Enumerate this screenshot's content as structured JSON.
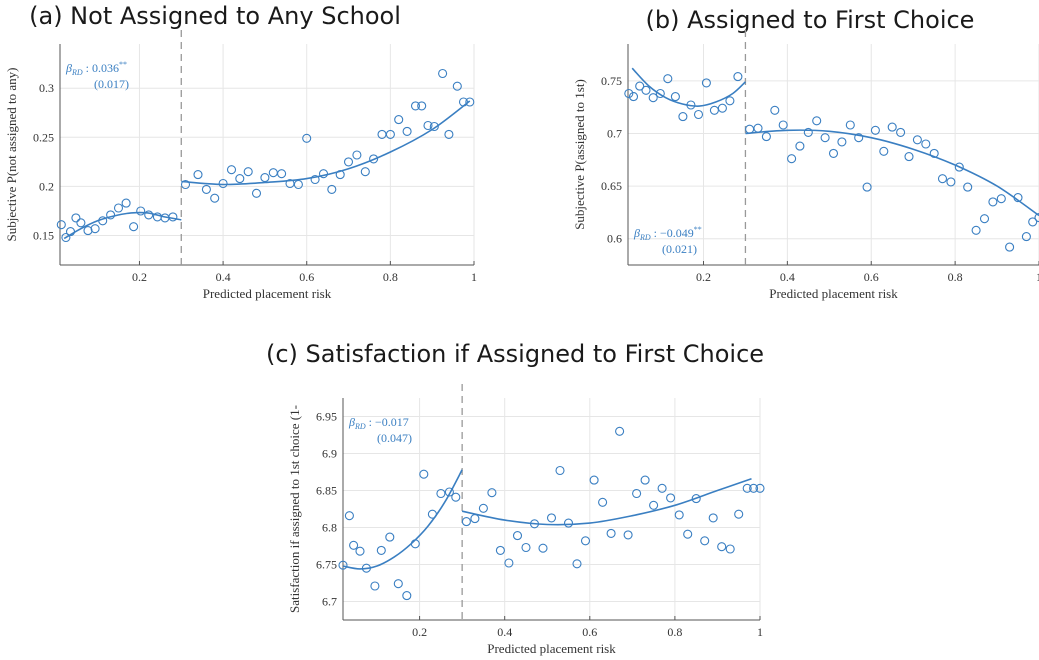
{
  "colors": {
    "series": "#3a7fc2",
    "grid": "#e6e6e6",
    "axis": "#555555",
    "cutoff": "#999999"
  },
  "chart_data": [
    {
      "type": "scatter",
      "title": "(a) Not Assigned to Any School",
      "xlabel": "Predicted placement risk",
      "ylabel": "Subjective P(not assigned to any)",
      "xlim": [
        0.01,
        1.0
      ],
      "ylim": [
        0.12,
        0.345
      ],
      "xticks": [
        0.2,
        0.4,
        0.6,
        0.8,
        1
      ],
      "xtick_labels": [
        "0.2",
        "0.4",
        "0.6",
        "0.8",
        "1"
      ],
      "yticks": [
        0.15,
        0.2,
        0.25,
        0.3
      ],
      "ytick_labels": [
        "0.15",
        "0.2",
        "0.25",
        "0.3"
      ],
      "cutoff": 0.3,
      "grid": true,
      "annotation": {
        "line1": "β",
        "sub": "RD",
        "value": " : 0.036",
        "stars": "**",
        "se": "(0.017)",
        "pos": "top-left"
      },
      "points_x": [
        0.013,
        0.024,
        0.035,
        0.048,
        0.06,
        0.077,
        0.094,
        0.112,
        0.131,
        0.15,
        0.168,
        0.186,
        0.203,
        0.222,
        0.243,
        0.261,
        0.28,
        0.31,
        0.34,
        0.36,
        0.38,
        0.4,
        0.42,
        0.44,
        0.46,
        0.48,
        0.5,
        0.52,
        0.54,
        0.56,
        0.58,
        0.6,
        0.62,
        0.64,
        0.66,
        0.68,
        0.7,
        0.72,
        0.74,
        0.76,
        0.78,
        0.8,
        0.82,
        0.84,
        0.86,
        0.875,
        0.89,
        0.905,
        0.925,
        0.94,
        0.96,
        0.975,
        0.99
      ],
      "points_y": [
        0.161,
        0.148,
        0.154,
        0.168,
        0.163,
        0.155,
        0.157,
        0.165,
        0.171,
        0.178,
        0.183,
        0.159,
        0.175,
        0.171,
        0.169,
        0.168,
        0.169,
        0.202,
        0.212,
        0.197,
        0.188,
        0.203,
        0.217,
        0.208,
        0.215,
        0.193,
        0.209,
        0.214,
        0.213,
        0.203,
        0.202,
        0.249,
        0.207,
        0.213,
        0.197,
        0.212,
        0.225,
        0.232,
        0.215,
        0.228,
        0.253,
        0.253,
        0.268,
        0.256,
        0.282,
        0.282,
        0.262,
        0.261,
        0.315,
        0.253,
        0.302,
        0.286,
        0.286
      ],
      "fit_left": {
        "x": [
          0.02,
          0.06,
          0.1,
          0.14,
          0.18,
          0.22,
          0.26,
          0.3
        ],
        "y": [
          0.147,
          0.157,
          0.165,
          0.17,
          0.173,
          0.173,
          0.169,
          0.166
        ]
      },
      "fit_right": {
        "x": [
          0.3,
          0.4,
          0.5,
          0.6,
          0.7,
          0.8,
          0.9,
          0.99
        ],
        "y": [
          0.205,
          0.202,
          0.204,
          0.208,
          0.218,
          0.235,
          0.258,
          0.287
        ]
      }
    },
    {
      "type": "scatter",
      "title": "(b) Assigned to First Choice",
      "xlabel": "Predicted placement risk",
      "ylabel": "Subjective P(assigned to 1st)",
      "xlim": [
        0.02,
        1.0
      ],
      "ylim": [
        0.575,
        0.785
      ],
      "xticks": [
        0.2,
        0.4,
        0.6,
        0.8,
        1
      ],
      "xtick_labels": [
        "0.2",
        "0.4",
        "0.6",
        "0.8",
        "1"
      ],
      "yticks": [
        0.6,
        0.65,
        0.7,
        0.75
      ],
      "ytick_labels": [
        "0.6",
        "0.65",
        "0.7",
        "0.75"
      ],
      "cutoff": 0.3,
      "grid": true,
      "annotation": {
        "line1": "β",
        "sub": "RD",
        "value": " : −0.049",
        "stars": "**",
        "se": "(0.021)",
        "pos": "bottom-left"
      },
      "points_x": [
        0.022,
        0.033,
        0.048,
        0.063,
        0.08,
        0.097,
        0.115,
        0.133,
        0.151,
        0.17,
        0.188,
        0.207,
        0.226,
        0.245,
        0.263,
        0.282,
        0.31,
        0.33,
        0.35,
        0.37,
        0.39,
        0.41,
        0.43,
        0.45,
        0.47,
        0.49,
        0.51,
        0.53,
        0.55,
        0.57,
        0.59,
        0.61,
        0.63,
        0.65,
        0.67,
        0.69,
        0.71,
        0.73,
        0.75,
        0.77,
        0.79,
        0.81,
        0.83,
        0.85,
        0.87,
        0.89,
        0.91,
        0.93,
        0.95,
        0.97,
        0.985,
        1.0
      ],
      "points_y": [
        0.738,
        0.735,
        0.745,
        0.741,
        0.734,
        0.738,
        0.752,
        0.735,
        0.716,
        0.727,
        0.718,
        0.748,
        0.722,
        0.724,
        0.731,
        0.754,
        0.704,
        0.705,
        0.697,
        0.722,
        0.708,
        0.676,
        0.688,
        0.701,
        0.712,
        0.696,
        0.681,
        0.692,
        0.708,
        0.696,
        0.649,
        0.703,
        0.683,
        0.706,
        0.701,
        0.678,
        0.694,
        0.69,
        0.681,
        0.657,
        0.654,
        0.668,
        0.649,
        0.608,
        0.619,
        0.635,
        0.638,
        0.592,
        0.639,
        0.602,
        0.616,
        0.62
      ],
      "fit_left": {
        "x": [
          0.03,
          0.07,
          0.11,
          0.15,
          0.19,
          0.23,
          0.27,
          0.3
        ],
        "y": [
          0.762,
          0.745,
          0.734,
          0.728,
          0.726,
          0.73,
          0.738,
          0.749
        ]
      },
      "fit_right": {
        "x": [
          0.3,
          0.4,
          0.5,
          0.6,
          0.7,
          0.8,
          0.9,
          1.0
        ],
        "y": [
          0.7,
          0.703,
          0.702,
          0.696,
          0.685,
          0.67,
          0.65,
          0.622
        ]
      }
    },
    {
      "type": "scatter",
      "title": "(c) Satisfaction if Assigned to First Choice",
      "xlabel": "Predicted placement risk",
      "ylabel": "Satisfaction if assigned to 1st choice (1-",
      "xlim": [
        0.02,
        1.0
      ],
      "ylim": [
        6.675,
        6.975
      ],
      "xticks": [
        0.2,
        0.4,
        0.6,
        0.8,
        1
      ],
      "xtick_labels": [
        "0.2",
        "0.4",
        "0.6",
        "0.8",
        "1"
      ],
      "yticks": [
        6.7,
        6.75,
        6.8,
        6.85,
        6.9,
        6.95
      ],
      "ytick_labels": [
        "6.7",
        "6.75",
        "6.8",
        "6.85",
        "6.9",
        "6.95"
      ],
      "cutoff": 0.3,
      "grid": true,
      "annotation": {
        "line1": "β",
        "sub": "RD",
        "value": " : −0.017",
        "stars": "",
        "se": "(0.047)",
        "pos": "top-left"
      },
      "points_x": [
        0.02,
        0.035,
        0.045,
        0.06,
        0.075,
        0.095,
        0.11,
        0.13,
        0.15,
        0.17,
        0.19,
        0.21,
        0.23,
        0.25,
        0.27,
        0.285,
        0.31,
        0.33,
        0.35,
        0.37,
        0.39,
        0.41,
        0.43,
        0.45,
        0.47,
        0.49,
        0.51,
        0.53,
        0.55,
        0.57,
        0.59,
        0.61,
        0.63,
        0.65,
        0.67,
        0.69,
        0.71,
        0.73,
        0.75,
        0.77,
        0.79,
        0.81,
        0.83,
        0.85,
        0.87,
        0.89,
        0.91,
        0.93,
        0.95,
        0.97,
        0.985,
        1.0
      ],
      "points_y": [
        6.749,
        6.816,
        6.776,
        6.768,
        6.745,
        6.721,
        6.769,
        6.787,
        6.724,
        6.708,
        6.778,
        6.872,
        6.818,
        6.846,
        6.848,
        6.841,
        6.808,
        6.812,
        6.826,
        6.847,
        6.769,
        6.752,
        6.789,
        6.773,
        6.805,
        6.772,
        6.813,
        6.877,
        6.806,
        6.751,
        6.782,
        6.864,
        6.834,
        6.792,
        6.93,
        6.79,
        6.846,
        6.864,
        6.83,
        6.853,
        6.84,
        6.817,
        6.791,
        6.839,
        6.782,
        6.813,
        6.774,
        6.771,
        6.818,
        6.853,
        6.853,
        6.853
      ],
      "fit_left": {
        "x": [
          0.02,
          0.06,
          0.1,
          0.14,
          0.18,
          0.22,
          0.26,
          0.3
        ],
        "y": [
          6.748,
          6.744,
          6.748,
          6.76,
          6.778,
          6.802,
          6.835,
          6.878
        ]
      },
      "fit_right": {
        "x": [
          0.3,
          0.4,
          0.5,
          0.6,
          0.7,
          0.8,
          0.9,
          0.98
        ],
        "y": [
          6.822,
          6.81,
          6.804,
          6.806,
          6.816,
          6.83,
          6.85,
          6.866
        ]
      }
    }
  ]
}
